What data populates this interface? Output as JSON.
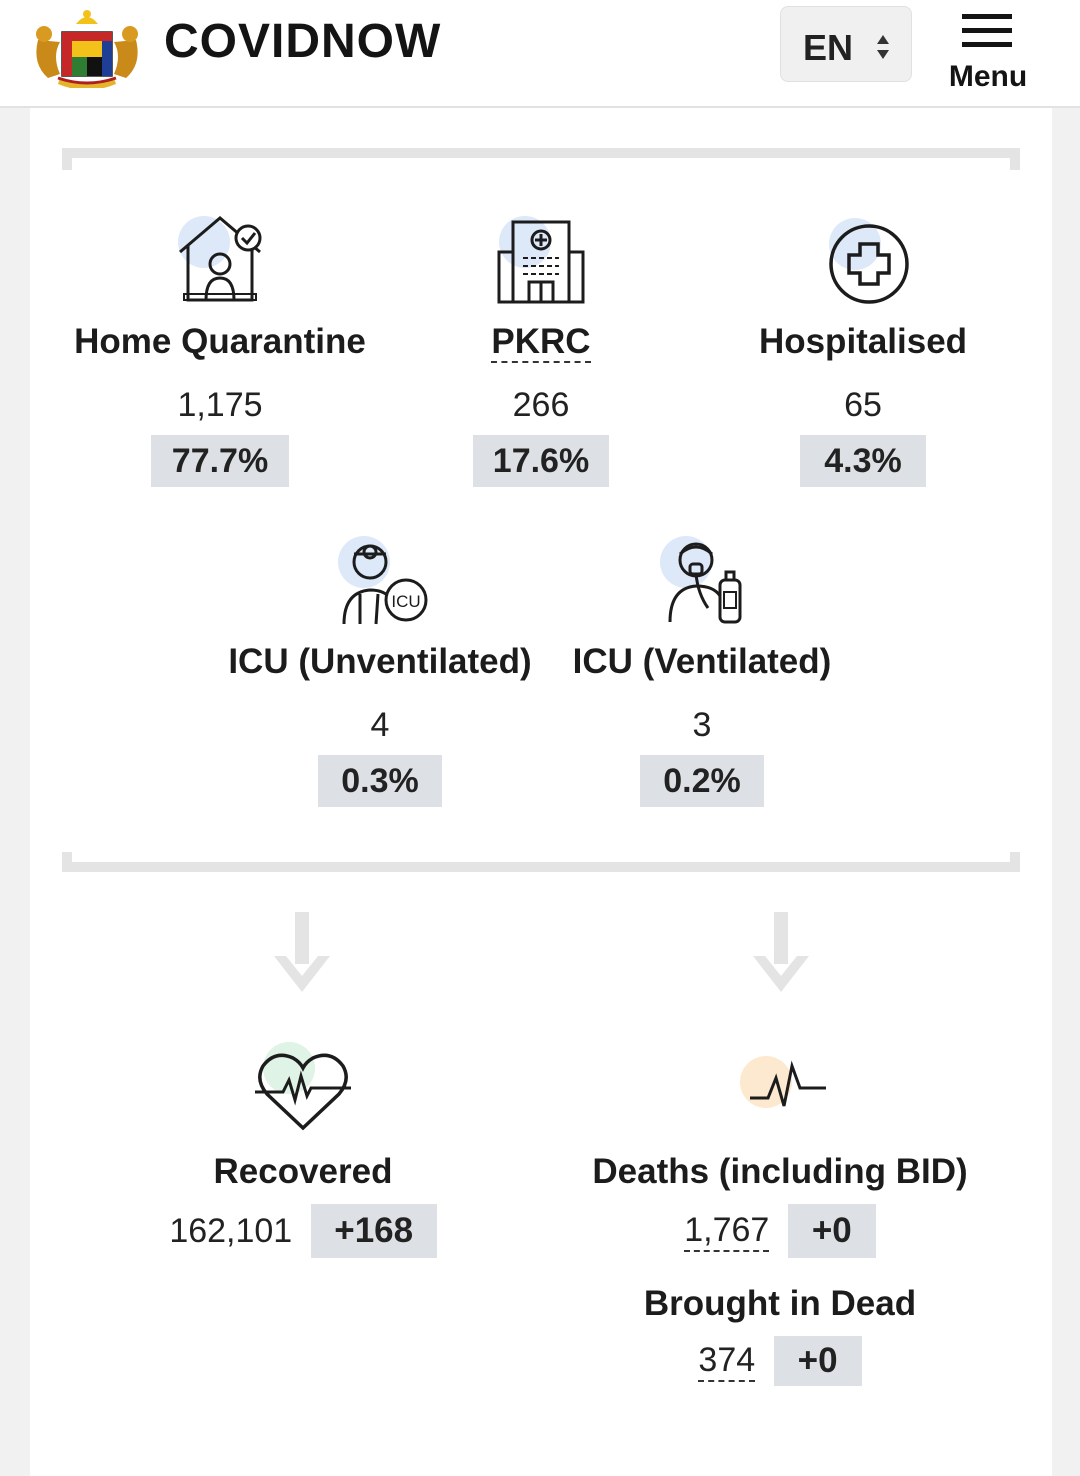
{
  "header": {
    "brand": "COVIDNOW",
    "language": "EN",
    "menu_label": "Menu"
  },
  "stats": {
    "home_quarantine": {
      "label": "Home Quarantine",
      "value": "1,175",
      "percent": "77.7%"
    },
    "pkrc": {
      "label": "PKRC",
      "value": "266",
      "percent": "17.6%"
    },
    "hospitalised": {
      "label": "Hospitalised",
      "value": "65",
      "percent": "4.3%"
    },
    "icu_unventilated": {
      "label": "ICU (Unventilated)",
      "value": "4",
      "percent": "0.3%"
    },
    "icu_ventilated": {
      "label": "ICU (Ventilated)",
      "value": "3",
      "percent": "0.2%"
    }
  },
  "outcomes": {
    "recovered": {
      "label": "Recovered",
      "value": "162,101",
      "change": "+168"
    },
    "deaths": {
      "label": "Deaths (including BID)",
      "value": "1,767",
      "change": "+0"
    },
    "bid": {
      "label": "Brought in Dead",
      "value": "374",
      "change": "+0"
    }
  },
  "colors": {
    "icon_bg_blue": "#dde9f9",
    "icon_bg_green": "#dff3e6",
    "icon_bg_orange": "#fde9cf",
    "badge_bg": "#dde1e6",
    "arrow": "#e4e4e4"
  }
}
